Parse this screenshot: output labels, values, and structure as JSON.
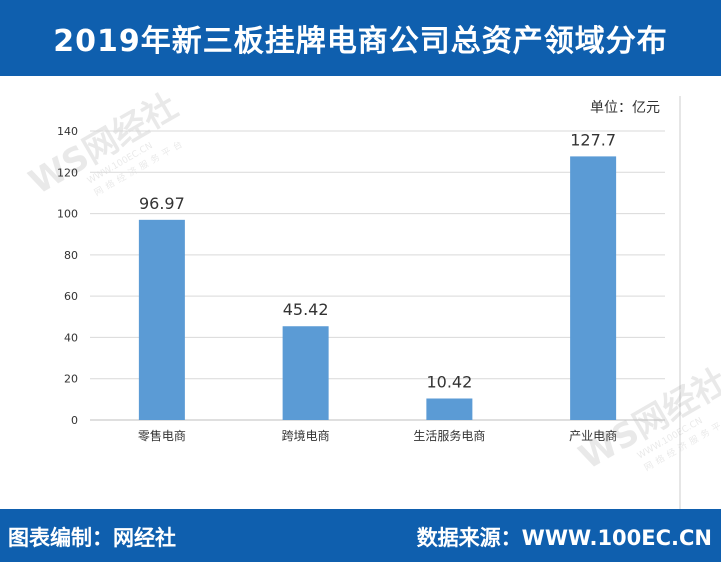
{
  "header": {
    "title": "2019年新三板挂牌电商公司总资产领域分布"
  },
  "unit_label": "单位：亿元",
  "footer": {
    "editor": "图表编制：网经社",
    "source": "数据来源：WWW.100EC.CN"
  },
  "watermark": {
    "brand": "网经社",
    "site": "WWW.100EC.CN",
    "tagline": "网络经济服务平台"
  },
  "colors": {
    "brand_blue": "#0f5fae",
    "bar": "#5b9bd5",
    "grid": "#d9d9d9"
  },
  "chart_data": {
    "type": "bar",
    "title": "",
    "xlabel": "",
    "ylabel": "",
    "categories": [
      "零售电商",
      "跨境电商",
      "生活服务电商",
      "产业电商"
    ],
    "values": [
      96.97,
      45.42,
      10.42,
      127.7
    ],
    "data_labels": [
      "96.97",
      "45.42",
      "10.42",
      "127.7"
    ],
    "ylim": [
      0,
      140
    ],
    "yticks": [
      0,
      20,
      40,
      60,
      80,
      100,
      120,
      140
    ],
    "grid": true,
    "legend": "none"
  }
}
